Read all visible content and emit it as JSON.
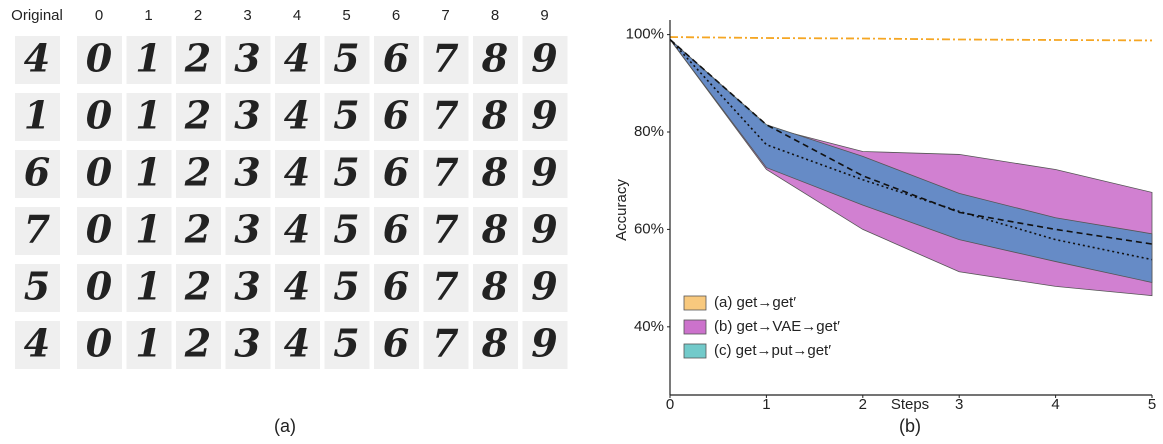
{
  "panel_a": {
    "columns": [
      "Original",
      "0",
      "1",
      "2",
      "3",
      "4",
      "5",
      "6",
      "7",
      "8",
      "9"
    ],
    "row_originals": [
      "4",
      "1",
      "6",
      "7",
      "5",
      "4"
    ],
    "caption": "(a)"
  },
  "chart_data": {
    "type": "line",
    "caption": "(b)",
    "xlabel": "Steps",
    "ylabel": "Accuracy",
    "x": [
      0,
      1,
      2,
      3,
      4,
      5
    ],
    "xlim": [
      0,
      5
    ],
    "xticks": [
      0,
      1,
      2,
      3,
      4,
      5
    ],
    "ylim": [
      26,
      103
    ],
    "yticks": [
      {
        "value": 40,
        "label": "40%"
      },
      {
        "value": 60,
        "label": "60%"
      },
      {
        "value": 80,
        "label": "80%"
      },
      {
        "value": 100,
        "label": "100%"
      }
    ],
    "legend": "lower left",
    "series": [
      {
        "name": "(a) get→get′",
        "color": "#f5a623",
        "legend_color": "#f8c97e",
        "values": [
          99.5,
          99.3,
          99.2,
          99.0,
          98.9,
          98.8
        ]
      },
      {
        "name": "(b) get→VAE→get′",
        "color": "#cc72cc",
        "legend_color": "#cc72cc",
        "upper": [
          99,
          81.1,
          76,
          75.4,
          72.3,
          67.6
        ],
        "lower": [
          99,
          72.3,
          60,
          51.3,
          48.3,
          46.4
        ],
        "swap_legend": true
      },
      {
        "name": "(c) get→put→get′",
        "color": "#5a8cc4",
        "legend_color": "#72caca",
        "upper": [
          99,
          81.5,
          75,
          67.4,
          62.4,
          59.1
        ],
        "lower": [
          99,
          72.7,
          65,
          57.9,
          53.4,
          49.1
        ]
      }
    ],
    "lines": [
      {
        "color": "#111111",
        "dash": "6,4",
        "values": [
          99,
          81.5,
          71,
          63.5,
          60,
          57
        ]
      },
      {
        "color": "#111111",
        "dash": "2,3",
        "values": [
          99,
          77.4,
          70.2,
          63.7,
          57.9,
          53.8
        ]
      }
    ]
  }
}
